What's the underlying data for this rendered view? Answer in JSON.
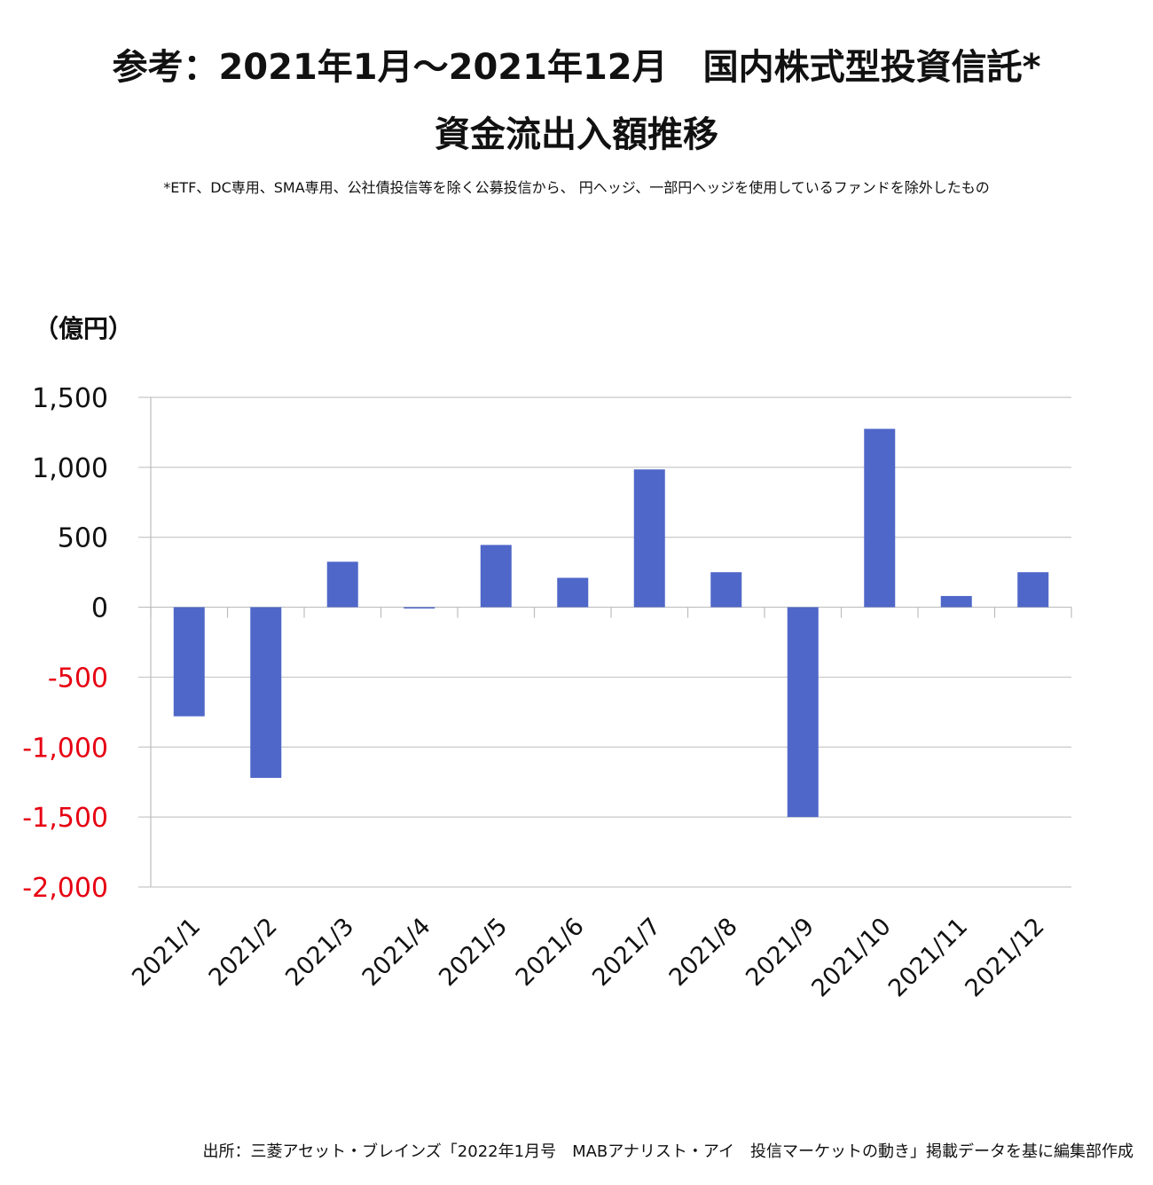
{
  "header": {
    "title_line1": "参考：2021年1月～2021年12月　国内株式型投資信託*",
    "title_line2": "資金流出入額推移",
    "note": "*ETF、DC専用、SMA専用、公社債投信等を除く公募投信から、 円ヘッジ、一部円ヘッジを使用しているファンドを除外したもの"
  },
  "source": "出所：三菱アセット・ブレインズ「2022年1月号　MABアナリスト・アイ　投信マーケットの動き」掲載データを基に編集部作成",
  "chart_data": {
    "type": "bar",
    "ylabel": "（億円）",
    "categories": [
      "2021/1",
      "2021/2",
      "2021/3",
      "2021/4",
      "2021/5",
      "2021/6",
      "2021/7",
      "2021/8",
      "2021/9",
      "2021/10",
      "2021/11",
      "2021/12"
    ],
    "values": [
      -780,
      -1220,
      325,
      -5,
      445,
      210,
      985,
      250,
      -1500,
      1275,
      80,
      250
    ],
    "ylim": [
      -2000,
      1500
    ],
    "yticks": [
      1500,
      1000,
      500,
      0,
      -500,
      -1000,
      -1500,
      -2000
    ],
    "ytick_labels": [
      "1,500",
      "1,000",
      "500",
      "0",
      "-500",
      "-1,000",
      "-1,500",
      "-2,000"
    ],
    "grid": true,
    "colors": {
      "bar": "#4f67c8",
      "negative_label": "#e60012",
      "positive_label": "#111111",
      "grid": "#c8c8c8"
    }
  }
}
